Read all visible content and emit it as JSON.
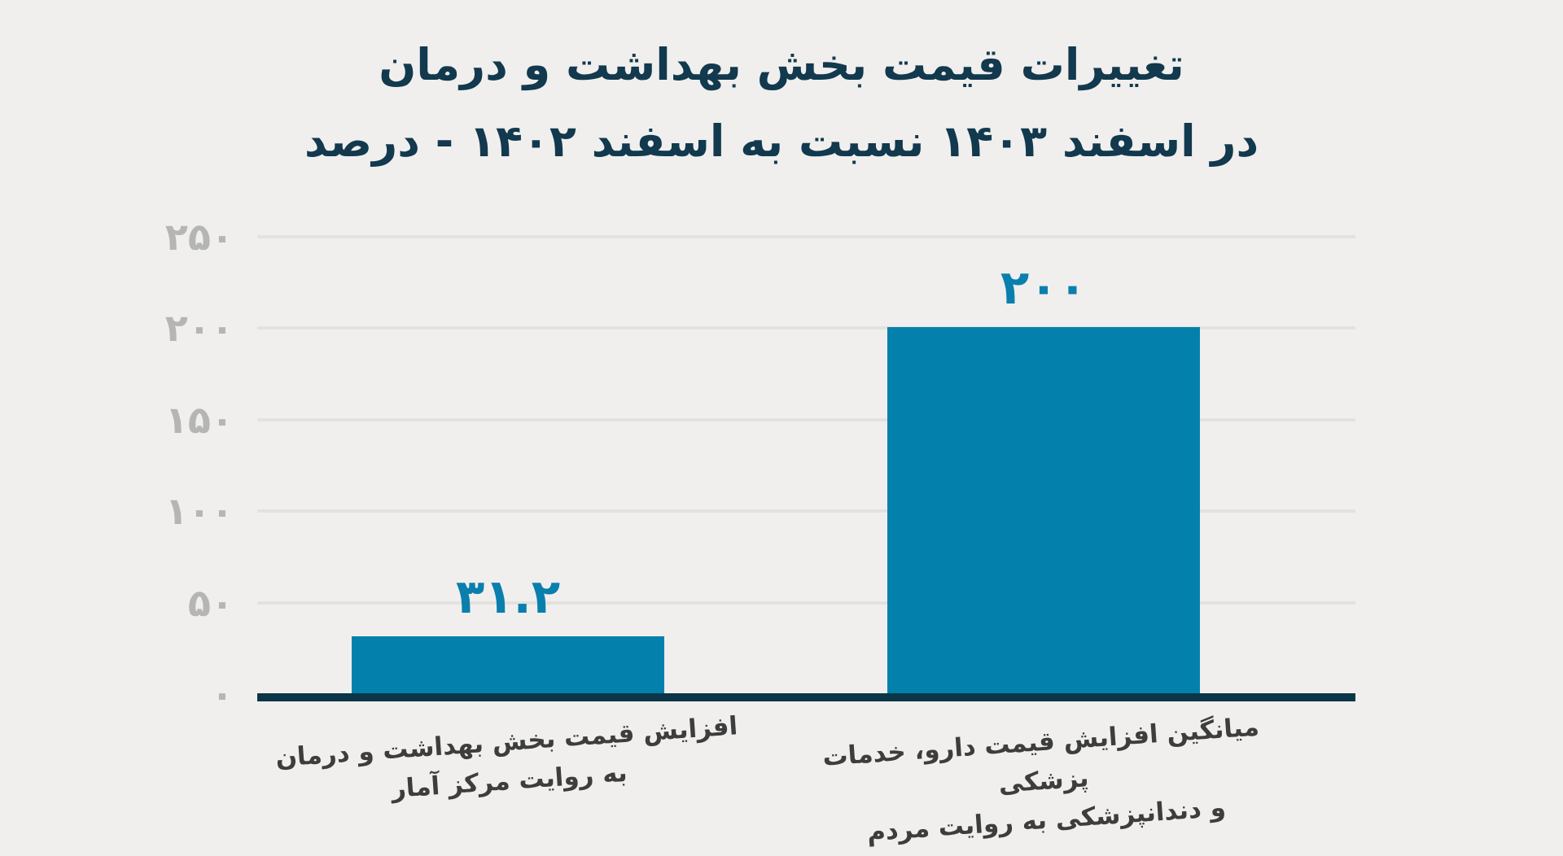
{
  "chart_data": {
    "type": "bar",
    "title": "تغییرات قیمت بخش بهداشت و درمان",
    "subtitle": "در اسفند ۱۴۰۳ نسبت به اسفند ۱۴۰۲ - درصد",
    "categories": [
      {
        "line1": "افزایش قیمت بخش بهداشت و درمان",
        "line2": "به روایت مرکز آمار"
      },
      {
        "line1": "میانگین افزایش قیمت دارو، خدمات پزشکی",
        "line2": "و دندانپزشکی به روایت مردم"
      }
    ],
    "values": [
      31.2,
      200
    ],
    "value_labels": [
      "۳۱.۲",
      "۲۰۰"
    ],
    "y_axis": {
      "ylim": [
        0,
        250
      ],
      "grid": true,
      "ticks": [
        {
          "value": 250,
          "label": "۲۵۰"
        },
        {
          "value": 200,
          "label": "۲۰۰"
        },
        {
          "value": 150,
          "label": "۱۵۰"
        },
        {
          "value": 100,
          "label": "۱۰۰"
        },
        {
          "value": 50,
          "label": "۵۰"
        },
        {
          "value": 0,
          "label": "۰"
        }
      ]
    },
    "legend": "none",
    "colors": {
      "background": "#f0efee",
      "bar": "#0480ad",
      "value_label": "#0a7fae",
      "title": "#12394d",
      "axis_line": "#0a3647",
      "gridline": "#e2e2e0",
      "tick_label": "#b5b5b4",
      "category_label": "#3d3d3d"
    }
  }
}
